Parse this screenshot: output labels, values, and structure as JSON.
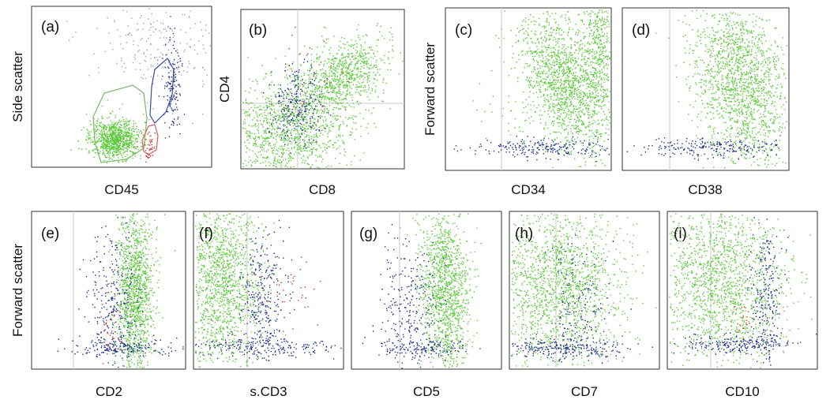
{
  "figure": {
    "panels": [
      {
        "id": "a",
        "label": "(a)",
        "xlabel": "CD45",
        "ylabel": "Side scatter"
      },
      {
        "id": "b",
        "label": "(b)",
        "xlabel": "CD8",
        "ylabel": "CD4"
      },
      {
        "id": "c",
        "label": "(c)",
        "xlabel": "CD34",
        "ylabel": "Forward scatter"
      },
      {
        "id": "d",
        "label": "(d)",
        "xlabel": "CD38",
        "ylabel": ""
      },
      {
        "id": "e",
        "label": "(e)",
        "xlabel": "CD2",
        "ylabel": "Forward scatter"
      },
      {
        "id": "f",
        "label": "(f)",
        "xlabel": "s.CD3",
        "ylabel": ""
      },
      {
        "id": "g",
        "label": "(g)",
        "xlabel": "CD5",
        "ylabel": ""
      },
      {
        "id": "h",
        "label": "(h)",
        "xlabel": "CD7",
        "ylabel": ""
      },
      {
        "id": "i",
        "label": "(i)",
        "xlabel": "CD10",
        "ylabel": ""
      }
    ]
  },
  "colors": {
    "green": "#5cc93a",
    "blue": "#1f2f8a",
    "red": "#d9302a",
    "grey": "#9aa0c0",
    "gate_green": "#7ab86a",
    "gate_blue": "#3a4a9a",
    "gate_red": "#d06060",
    "frame": "#333333",
    "guide": "#c8c8c8"
  },
  "chart_data": [
    {
      "panel": "a",
      "type": "scatter",
      "x_axis": "CD45",
      "y_axis": "Side scatter",
      "populations": [
        {
          "color": "green",
          "x_center": 0.55,
          "y_center": 0.15
        },
        {
          "color": "blue",
          "x_center": 0.82,
          "y_center": 0.5
        },
        {
          "color": "red",
          "x_center": 0.73,
          "y_center": 0.18
        },
        {
          "color": "grey",
          "x_center": 0.8,
          "y_center": 0.85
        }
      ],
      "gates": [
        "green",
        "blue",
        "red"
      ],
      "quadrant_lines": false
    },
    {
      "panel": "b",
      "type": "scatter",
      "x_axis": "CD8",
      "y_axis": "CD4",
      "populations": [
        {
          "color": "green",
          "x_center": 0.3,
          "y_center": 0.3
        },
        {
          "color": "green",
          "x_center": 0.7,
          "y_center": 0.75
        },
        {
          "color": "blue",
          "x_center": 0.35,
          "y_center": 0.3
        },
        {
          "color": "red",
          "x_center": 0.5,
          "y_center": 0.55
        }
      ],
      "quadrant_lines": true,
      "quadrant_cut": [
        0.34,
        0.37
      ]
    },
    {
      "panel": "c",
      "type": "scatter",
      "x_axis": "CD34",
      "y_axis": "Forward scatter",
      "populations": [
        {
          "color": "green",
          "x_center": 0.72,
          "y_center": 0.58
        },
        {
          "color": "blue",
          "x_center": 0.55,
          "y_center": 0.15
        }
      ],
      "quadrant_lines": false,
      "marker_line": 0.34
    },
    {
      "panel": "d",
      "type": "scatter",
      "x_axis": "CD38",
      "y_axis": "Forward scatter",
      "populations": [
        {
          "color": "green",
          "x_center": 0.7,
          "y_center": 0.58
        },
        {
          "color": "blue",
          "x_center": 0.5,
          "y_center": 0.15
        }
      ],
      "quadrant_lines": false,
      "marker_line": 0.28
    },
    {
      "panel": "e",
      "type": "scatter",
      "x_axis": "CD2",
      "y_axis": "Forward scatter",
      "populations": [
        {
          "color": "green",
          "x_center": 0.6,
          "y_center": 0.6
        },
        {
          "color": "blue",
          "x_center": 0.45,
          "y_center": 0.45
        },
        {
          "color": "red",
          "x_center": 0.43,
          "y_center": 0.3
        }
      ],
      "marker_line": 0.27
    },
    {
      "panel": "f",
      "type": "scatter",
      "x_axis": "s.CD3",
      "y_axis": "Forward scatter",
      "populations": [
        {
          "color": "green",
          "x_center": 0.2,
          "y_center": 0.7
        },
        {
          "color": "blue",
          "x_center": 0.45,
          "y_center": 0.55
        },
        {
          "color": "red",
          "x_center": 0.6,
          "y_center": 0.45
        }
      ],
      "marker_line": 0.36
    },
    {
      "panel": "g",
      "type": "scatter",
      "x_axis": "CD5",
      "y_axis": "Forward scatter",
      "populations": [
        {
          "color": "green",
          "x_center": 0.6,
          "y_center": 0.6
        },
        {
          "color": "blue",
          "x_center": 0.4,
          "y_center": 0.4
        }
      ],
      "marker_line": 0.32
    },
    {
      "panel": "h",
      "type": "scatter",
      "x_axis": "CD7",
      "y_axis": "Forward scatter",
      "populations": [
        {
          "color": "green",
          "x_center": 0.35,
          "y_center": 0.6
        },
        {
          "color": "blue",
          "x_center": 0.38,
          "y_center": 0.2
        }
      ],
      "marker_line": 0.31
    },
    {
      "panel": "i",
      "type": "scatter",
      "x_axis": "CD10",
      "y_axis": "Forward scatter",
      "populations": [
        {
          "color": "green",
          "x_center": 0.35,
          "y_center": 0.6
        },
        {
          "color": "blue",
          "x_center": 0.65,
          "y_center": 0.5
        },
        {
          "color": "red",
          "x_center": 0.55,
          "y_center": 0.3
        }
      ],
      "marker_line": 0.29
    }
  ]
}
